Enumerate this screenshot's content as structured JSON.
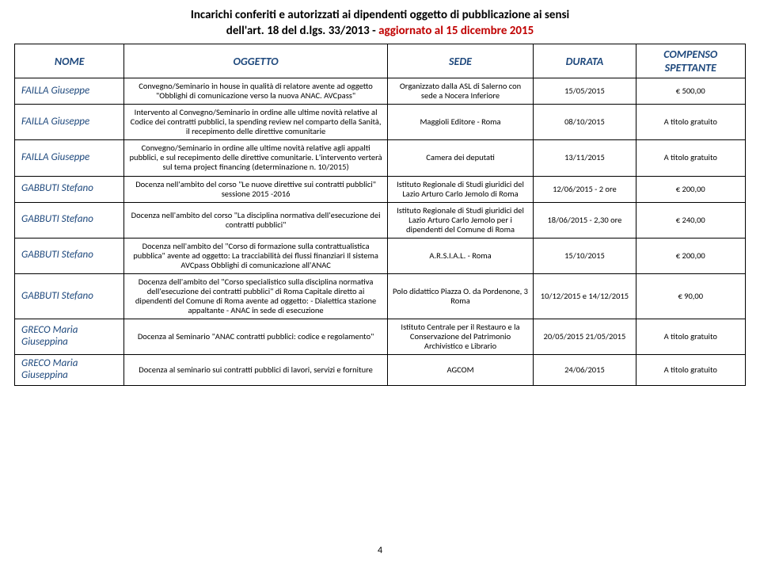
{
  "title": {
    "line1": "Incarichi conferiti e autorizzati ai dipendenti oggetto di pubblicazione ai sensi",
    "line2_black": "dell'art. 18 del d.lgs. 33/2013 - ",
    "line2_red": "aggiornato al 15 dicembre 2015"
  },
  "headers": {
    "nome": "NOME",
    "oggetto": "OGGETTO",
    "sede": "SEDE",
    "durata": "DURATA",
    "compenso": "COMPENSO SPETTANTE"
  },
  "rows": [
    {
      "nome": "FAILLA Giuseppe",
      "oggetto": "Convegno/Seminario in house in qualità di relatore avente ad oggetto \"Obblighi di comunicazione verso la nuova ANAC. AVCpass\"",
      "sede": "Organizzato dalla ASL di Salerno con sede a Nocera Inferiore",
      "durata": "15/05/2015",
      "compenso": "€ 500,00"
    },
    {
      "nome": "FAILLA Giuseppe",
      "oggetto": "Intervento al Convegno/Seminario in ordine alle ultime novità relative al Codice dei contratti pubblici, la spending review nel comparto della Sanità, il recepimento delle direttive comunitarie",
      "sede": "Maggioli Editore - Roma",
      "durata": "08/10/2015",
      "compenso": "A titolo gratuito"
    },
    {
      "nome": "FAILLA Giuseppe",
      "oggetto": "Convegno/Seminario in ordine alle ultime novità relative agli appalti pubblici, e sul recepimento delle direttive comunitarie. L'intervento verterà sul tema project financing (determinazione n. 10/2015)",
      "sede": "Camera dei deputati",
      "durata": "13/11/2015",
      "compenso": "A titolo gratuito"
    },
    {
      "nome": "GABBUTI Stefano",
      "oggetto": "Docenza nell'ambito del corso \"Le nuove direttive sui contratti pubblici\" sessione 2015 -2016",
      "sede": "Istituto Regionale di Studi giuridici del Lazio Arturo Carlo Jemolo di Roma",
      "durata": "12/06/2015 - 2 ore",
      "compenso": "€ 200,00"
    },
    {
      "nome": "GABBUTI Stefano",
      "oggetto": "Docenza nell'ambito del corso \"La disciplina normativa dell'esecuzione dei contratti pubblici\"",
      "sede": "Istituto Regionale di Studi giuridici del Lazio Arturo Carlo Jemolo per i dipendenti del Comune di Roma",
      "durata": "18/06/2015 - 2,30 ore",
      "compenso": "€ 240,00"
    },
    {
      "nome": "GABBUTI Stefano",
      "oggetto": "Docenza nell'ambito del \"Corso di formazione sulla contrattualistica pubblica\" avente ad oggetto:\nLa tracciabilità dei flussi finanziari\nIl sistema AVCpass\nObblighi di comunicazione all'ANAC",
      "sede": "A.R.S.I.A.L. - Roma",
      "durata": "15/10/2015",
      "compenso": "€ 200,00"
    },
    {
      "nome": "GABBUTI Stefano",
      "oggetto": "Docenza dell'ambito del \"Corso specialistico sulla disciplina normativa dell'esecuzione dei contratti pubblici\" di Roma Capitale diretto ai dipendenti del Comune di Roma avente ad oggetto:\n- Dialettica stazione appaltante - ANAC in sede di esecuzione",
      "sede": "Polo didattico Piazza O. da Pordenone, 3 Roma",
      "durata": "10/12/2015 e 14/12/2015",
      "compenso": "€ 90,00"
    },
    {
      "nome": "GRECO Maria Giuseppina",
      "oggetto": "Docenza al Seminario \"ANAC contratti pubblici:   codice e regolamento\"",
      "sede": "Istituto Centrale per il Restauro e la Conservazione del Patrimonio Archivistico e Librario",
      "durata": "20/05/2015 21/05/2015",
      "compenso": "A titolo gratuito"
    },
    {
      "nome": "GRECO Maria Giuseppina",
      "oggetto": "Docenza al seminario sui contratti pubblici di lavori, servizi e forniture",
      "sede": "AGCOM",
      "durata": "24/06/2015",
      "compenso": "A titolo gratuito"
    }
  ],
  "pageNumber": "4"
}
